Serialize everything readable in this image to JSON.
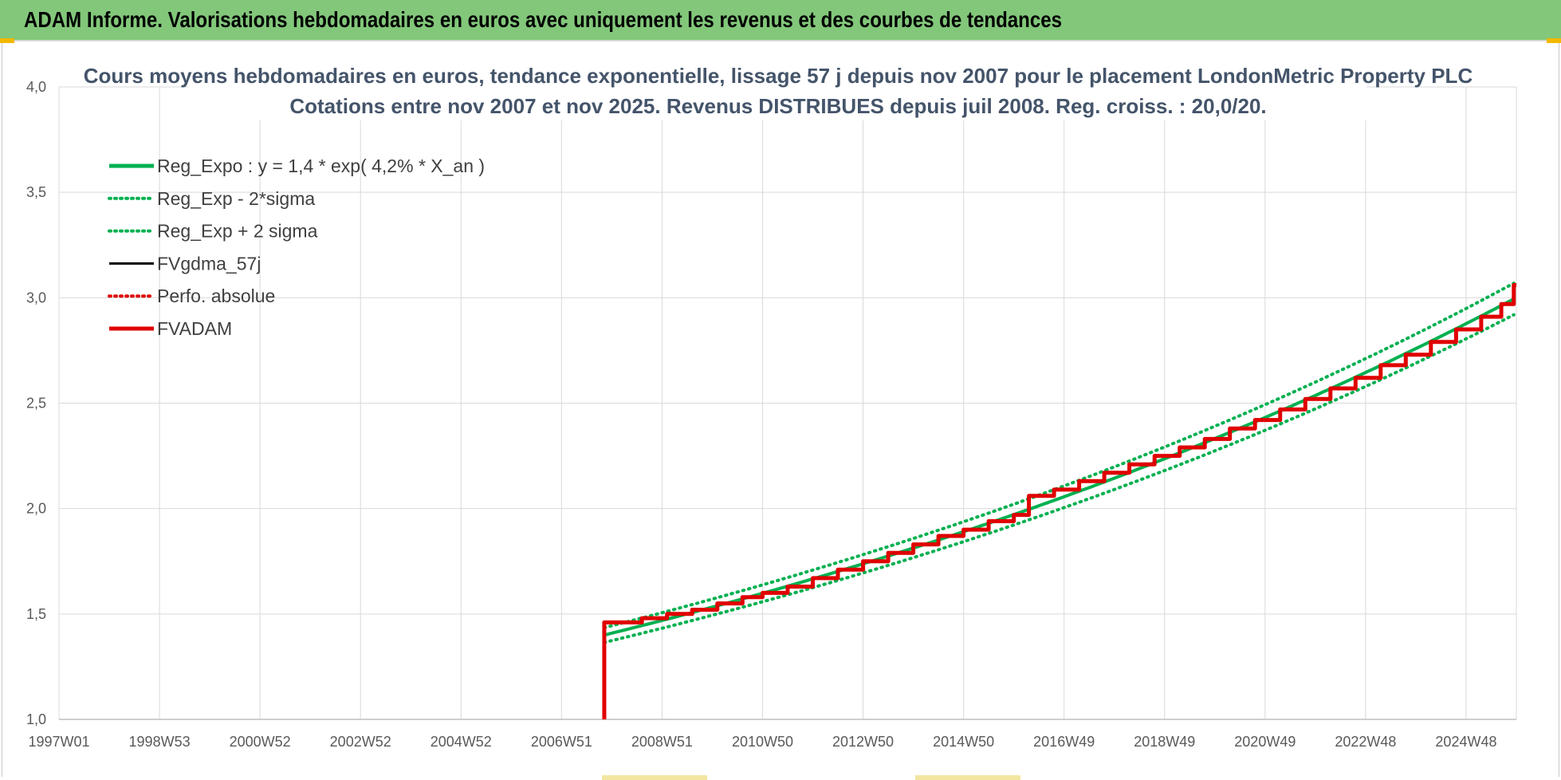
{
  "header": {
    "title": "ADAM Informe. Valorisations hebdomadaires en euros avec uniquement les revenus et des courbes de tendances"
  },
  "chart_data": {
    "type": "line",
    "title_line1": "Cours moyens hebdomadaires en euros, tendance exponentielle, lissage 57 j depuis nov 2007  pour le placement LondonMetric Property PLC",
    "title_line2": "Cotations entre nov 2007 et nov 2025. Revenus DISTRIBUES depuis juil 2008. Reg. croiss. : 20,0/20.",
    "x_tick_labels": [
      "1997W01",
      "1998W53",
      "2000W52",
      "2002W52",
      "2004W52",
      "2006W51",
      "2008W51",
      "2010W50",
      "2012W50",
      "2014W50",
      "2016W49",
      "2018W49",
      "2020W49",
      "2022W48",
      "2024W48"
    ],
    "y_tick_labels": [
      "1,0",
      "1,5",
      "2,0",
      "2,5",
      "3,0",
      "3,5",
      "4,0"
    ],
    "ylim": [
      1.0,
      4.0
    ],
    "xlim": [
      1997.0,
      2026.0
    ],
    "grid": true,
    "legend_position": "top-left",
    "regression": {
      "a": 1.4,
      "rate": 0.042,
      "start": 2007.85
    },
    "sigma_band": 0.025,
    "fvadam_steps": [
      [
        2007.85,
        1.46
      ],
      [
        2008.6,
        1.48
      ],
      [
        2009.1,
        1.5
      ],
      [
        2009.6,
        1.52
      ],
      [
        2010.1,
        1.55
      ],
      [
        2010.6,
        1.58
      ],
      [
        2011.0,
        1.6
      ],
      [
        2011.5,
        1.63
      ],
      [
        2012.0,
        1.67
      ],
      [
        2012.5,
        1.71
      ],
      [
        2013.0,
        1.75
      ],
      [
        2013.5,
        1.79
      ],
      [
        2014.0,
        1.83
      ],
      [
        2014.5,
        1.87
      ],
      [
        2015.0,
        1.9
      ],
      [
        2015.5,
        1.94
      ],
      [
        2016.0,
        1.97
      ],
      [
        2016.3,
        2.06
      ],
      [
        2016.8,
        2.09
      ],
      [
        2017.3,
        2.13
      ],
      [
        2017.8,
        2.17
      ],
      [
        2018.3,
        2.21
      ],
      [
        2018.8,
        2.25
      ],
      [
        2019.3,
        2.29
      ],
      [
        2019.8,
        2.33
      ],
      [
        2020.3,
        2.38
      ],
      [
        2020.8,
        2.42
      ],
      [
        2021.3,
        2.47
      ],
      [
        2021.8,
        2.52
      ],
      [
        2022.3,
        2.57
      ],
      [
        2022.8,
        2.62
      ],
      [
        2023.3,
        2.68
      ],
      [
        2023.8,
        2.73
      ],
      [
        2024.3,
        2.79
      ],
      [
        2024.8,
        2.85
      ],
      [
        2025.3,
        2.91
      ],
      [
        2025.7,
        2.97
      ],
      [
        2025.95,
        3.06
      ]
    ],
    "series": [
      {
        "name": "Reg_Expo : y = 1,4 * exp( 4,2% *  X_an )",
        "color": "#00b050",
        "style": "solid"
      },
      {
        "name": "Reg_Exp - 2*sigma",
        "color": "#00b050",
        "style": "dotted"
      },
      {
        "name": "Reg_Exp + 2 sigma",
        "color": "#00b050",
        "style": "dotted"
      },
      {
        "name": "FVgdma_57j",
        "color": "#000000",
        "style": "solid"
      },
      {
        "name": "Perfo. absolue",
        "color": "#e00000",
        "style": "dotted"
      },
      {
        "name": "FVADAM",
        "color": "#e00000",
        "style": "solid-thick"
      }
    ]
  }
}
